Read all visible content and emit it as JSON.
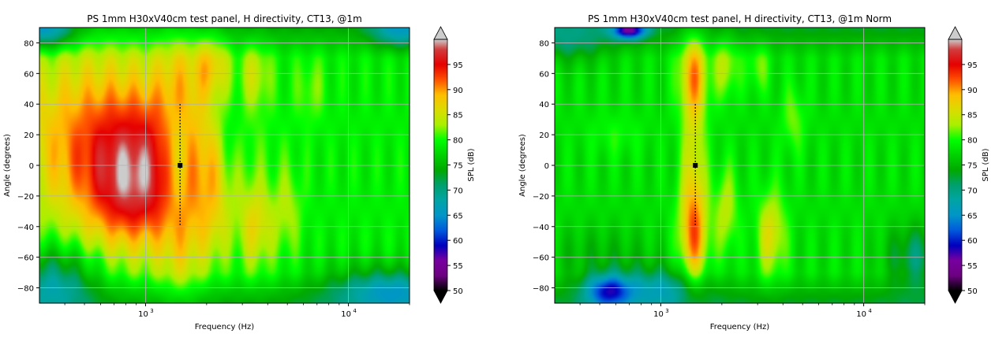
{
  "chart_data": [
    {
      "type": "heatmap",
      "title": "PS 1mm H30xV40cm test panel, H directivity, CT13, @1m",
      "xlabel": "Frequency (Hz)",
      "ylabel": "Angle (degrees)",
      "x_scale": "log",
      "xlim": [
        300,
        20000
      ],
      "ylim": [
        -90,
        90
      ],
      "x_major_ticks": [
        1000,
        10000
      ],
      "x_tick_labels": [
        "10",
        "10"
      ],
      "x_tick_exponents": [
        "3",
        "4"
      ],
      "y_ticks": [
        -80,
        -60,
        -40,
        -20,
        0,
        20,
        40,
        60,
        80
      ],
      "y_tick_labels": [
        "−80",
        "−60",
        "−40",
        "−20",
        "0",
        "20",
        "40",
        "60",
        "80"
      ],
      "grid": true,
      "colorbar": {
        "label": "SPL (dB)",
        "range": [
          50,
          100
        ],
        "ticks": [
          "50",
          "55",
          "60",
          "65",
          "70",
          "75",
          "80",
          "85",
          "90",
          "95"
        ],
        "extend": "both",
        "colormap": "nipy_spectral"
      },
      "marker": {
        "frequency": 1480,
        "angle": 0
      },
      "dotted_line": {
        "frequency": 1480,
        "angle_range": [
          -40,
          40
        ]
      },
      "features": [
        {
          "f": 600,
          "a": 20,
          "level": 89,
          "sf": 0.35,
          "sa": 45
        },
        {
          "f": 1000,
          "a": 5,
          "level": 87,
          "sf": 0.25,
          "sa": 30
        },
        {
          "f": 850,
          "a": -25,
          "level": 87,
          "sf": 0.15,
          "sa": 25
        },
        {
          "f": 1450,
          "a": 55,
          "level": 84,
          "sf": 0.07,
          "sa": 25
        },
        {
          "f": 1500,
          "a": -45,
          "level": 86,
          "sf": 0.08,
          "sa": 30
        },
        {
          "f": 2100,
          "a": 65,
          "level": 86,
          "sf": 0.06,
          "sa": 15
        },
        {
          "f": 2100,
          "a": -5,
          "level": 82,
          "sf": 0.05,
          "sa": 20
        },
        {
          "f": 2200,
          "a": -40,
          "level": 83,
          "sf": 0.06,
          "sa": 20
        },
        {
          "f": 3500,
          "a": -40,
          "level": 86,
          "sf": 0.06,
          "sa": 20
        },
        {
          "f": 3500,
          "a": 60,
          "level": 84,
          "sf": 0.05,
          "sa": 15
        },
        {
          "f": 5000,
          "a": -30,
          "level": 83,
          "sf": 0.05,
          "sa": 20
        },
        {
          "f": 6500,
          "a": 50,
          "level": 82,
          "sf": 0.05,
          "sa": 15
        },
        {
          "f": 1400,
          "a": 0,
          "level": 72,
          "sf": 0.05,
          "sa": 30
        },
        {
          "f": 2600,
          "a": 20,
          "level": 76,
          "sf": 0.05,
          "sa": 20
        },
        {
          "f": 350,
          "a": -75,
          "level": 69,
          "sf": 0.15,
          "sa": 15
        },
        {
          "f": 320,
          "a": 88,
          "level": 68,
          "sf": 0.1,
          "sa": 8
        },
        {
          "f": 18000,
          "a": 88,
          "level": 70,
          "sf": 0.1,
          "sa": 8
        },
        {
          "f": 18000,
          "a": -82,
          "level": 72,
          "sf": 0.15,
          "sa": 10
        },
        {
          "f": 12000,
          "a": -80,
          "level": 74,
          "sf": 0.2,
          "sa": 12
        }
      ],
      "base_level": 79
    },
    {
      "type": "heatmap",
      "title": "PS 1mm H30xV40cm test panel, H directivity, CT13, @1m Norm",
      "xlabel": "Frequency (Hz)",
      "ylabel": "Angle (degrees)",
      "x_scale": "log",
      "xlim": [
        300,
        20000
      ],
      "ylim": [
        -90,
        90
      ],
      "x_major_ticks": [
        1000,
        10000
      ],
      "x_tick_labels": [
        "10",
        "10"
      ],
      "x_tick_exponents": [
        "3",
        "4"
      ],
      "y_ticks": [
        -80,
        -60,
        -40,
        -20,
        0,
        20,
        40,
        60,
        80
      ],
      "y_tick_labels": [
        "−80",
        "−60",
        "−40",
        "−20",
        "0",
        "20",
        "40",
        "60",
        "80"
      ],
      "grid": true,
      "colorbar": {
        "label": "SPL (dB)",
        "range": [
          50,
          100
        ],
        "ticks": [
          "50",
          "55",
          "60",
          "65",
          "70",
          "75",
          "80",
          "85",
          "90",
          "95"
        ],
        "extend": "both",
        "colormap": "nipy_spectral"
      },
      "marker": {
        "frequency": 1480,
        "angle": 0
      },
      "dotted_line": {
        "frequency": 1480,
        "angle_range": [
          -40,
          40
        ]
      },
      "features": [
        {
          "f": 1450,
          "a": 60,
          "level": 89,
          "sf": 0.05,
          "sa": 20
        },
        {
          "f": 1450,
          "a": -45,
          "level": 91,
          "sf": 0.05,
          "sa": 25
        },
        {
          "f": 1450,
          "a": 10,
          "level": 84,
          "sf": 0.04,
          "sa": 30
        },
        {
          "f": 2100,
          "a": 65,
          "level": 84,
          "sf": 0.04,
          "sa": 15
        },
        {
          "f": 2100,
          "a": -30,
          "level": 84,
          "sf": 0.04,
          "sa": 20
        },
        {
          "f": 3500,
          "a": -45,
          "level": 86,
          "sf": 0.05,
          "sa": 20
        },
        {
          "f": 3000,
          "a": 65,
          "level": 82,
          "sf": 0.04,
          "sa": 12
        },
        {
          "f": 4500,
          "a": 30,
          "level": 82,
          "sf": 0.04,
          "sa": 15
        },
        {
          "f": 600,
          "a": 20,
          "level": 80,
          "sf": 0.1,
          "sa": 10
        },
        {
          "f": 500,
          "a": -60,
          "level": 75,
          "sf": 0.2,
          "sa": 15
        },
        {
          "f": 550,
          "a": -82,
          "level": 64,
          "sf": 0.08,
          "sa": 8
        },
        {
          "f": 700,
          "a": 88,
          "level": 60,
          "sf": 0.06,
          "sa": 4
        },
        {
          "f": 1000,
          "a": -80,
          "level": 70,
          "sf": 0.15,
          "sa": 10
        },
        {
          "f": 350,
          "a": 80,
          "level": 73,
          "sf": 0.15,
          "sa": 10
        },
        {
          "f": 18000,
          "a": -60,
          "level": 71,
          "sf": 0.1,
          "sa": 15
        }
      ],
      "base_level": 78
    }
  ]
}
